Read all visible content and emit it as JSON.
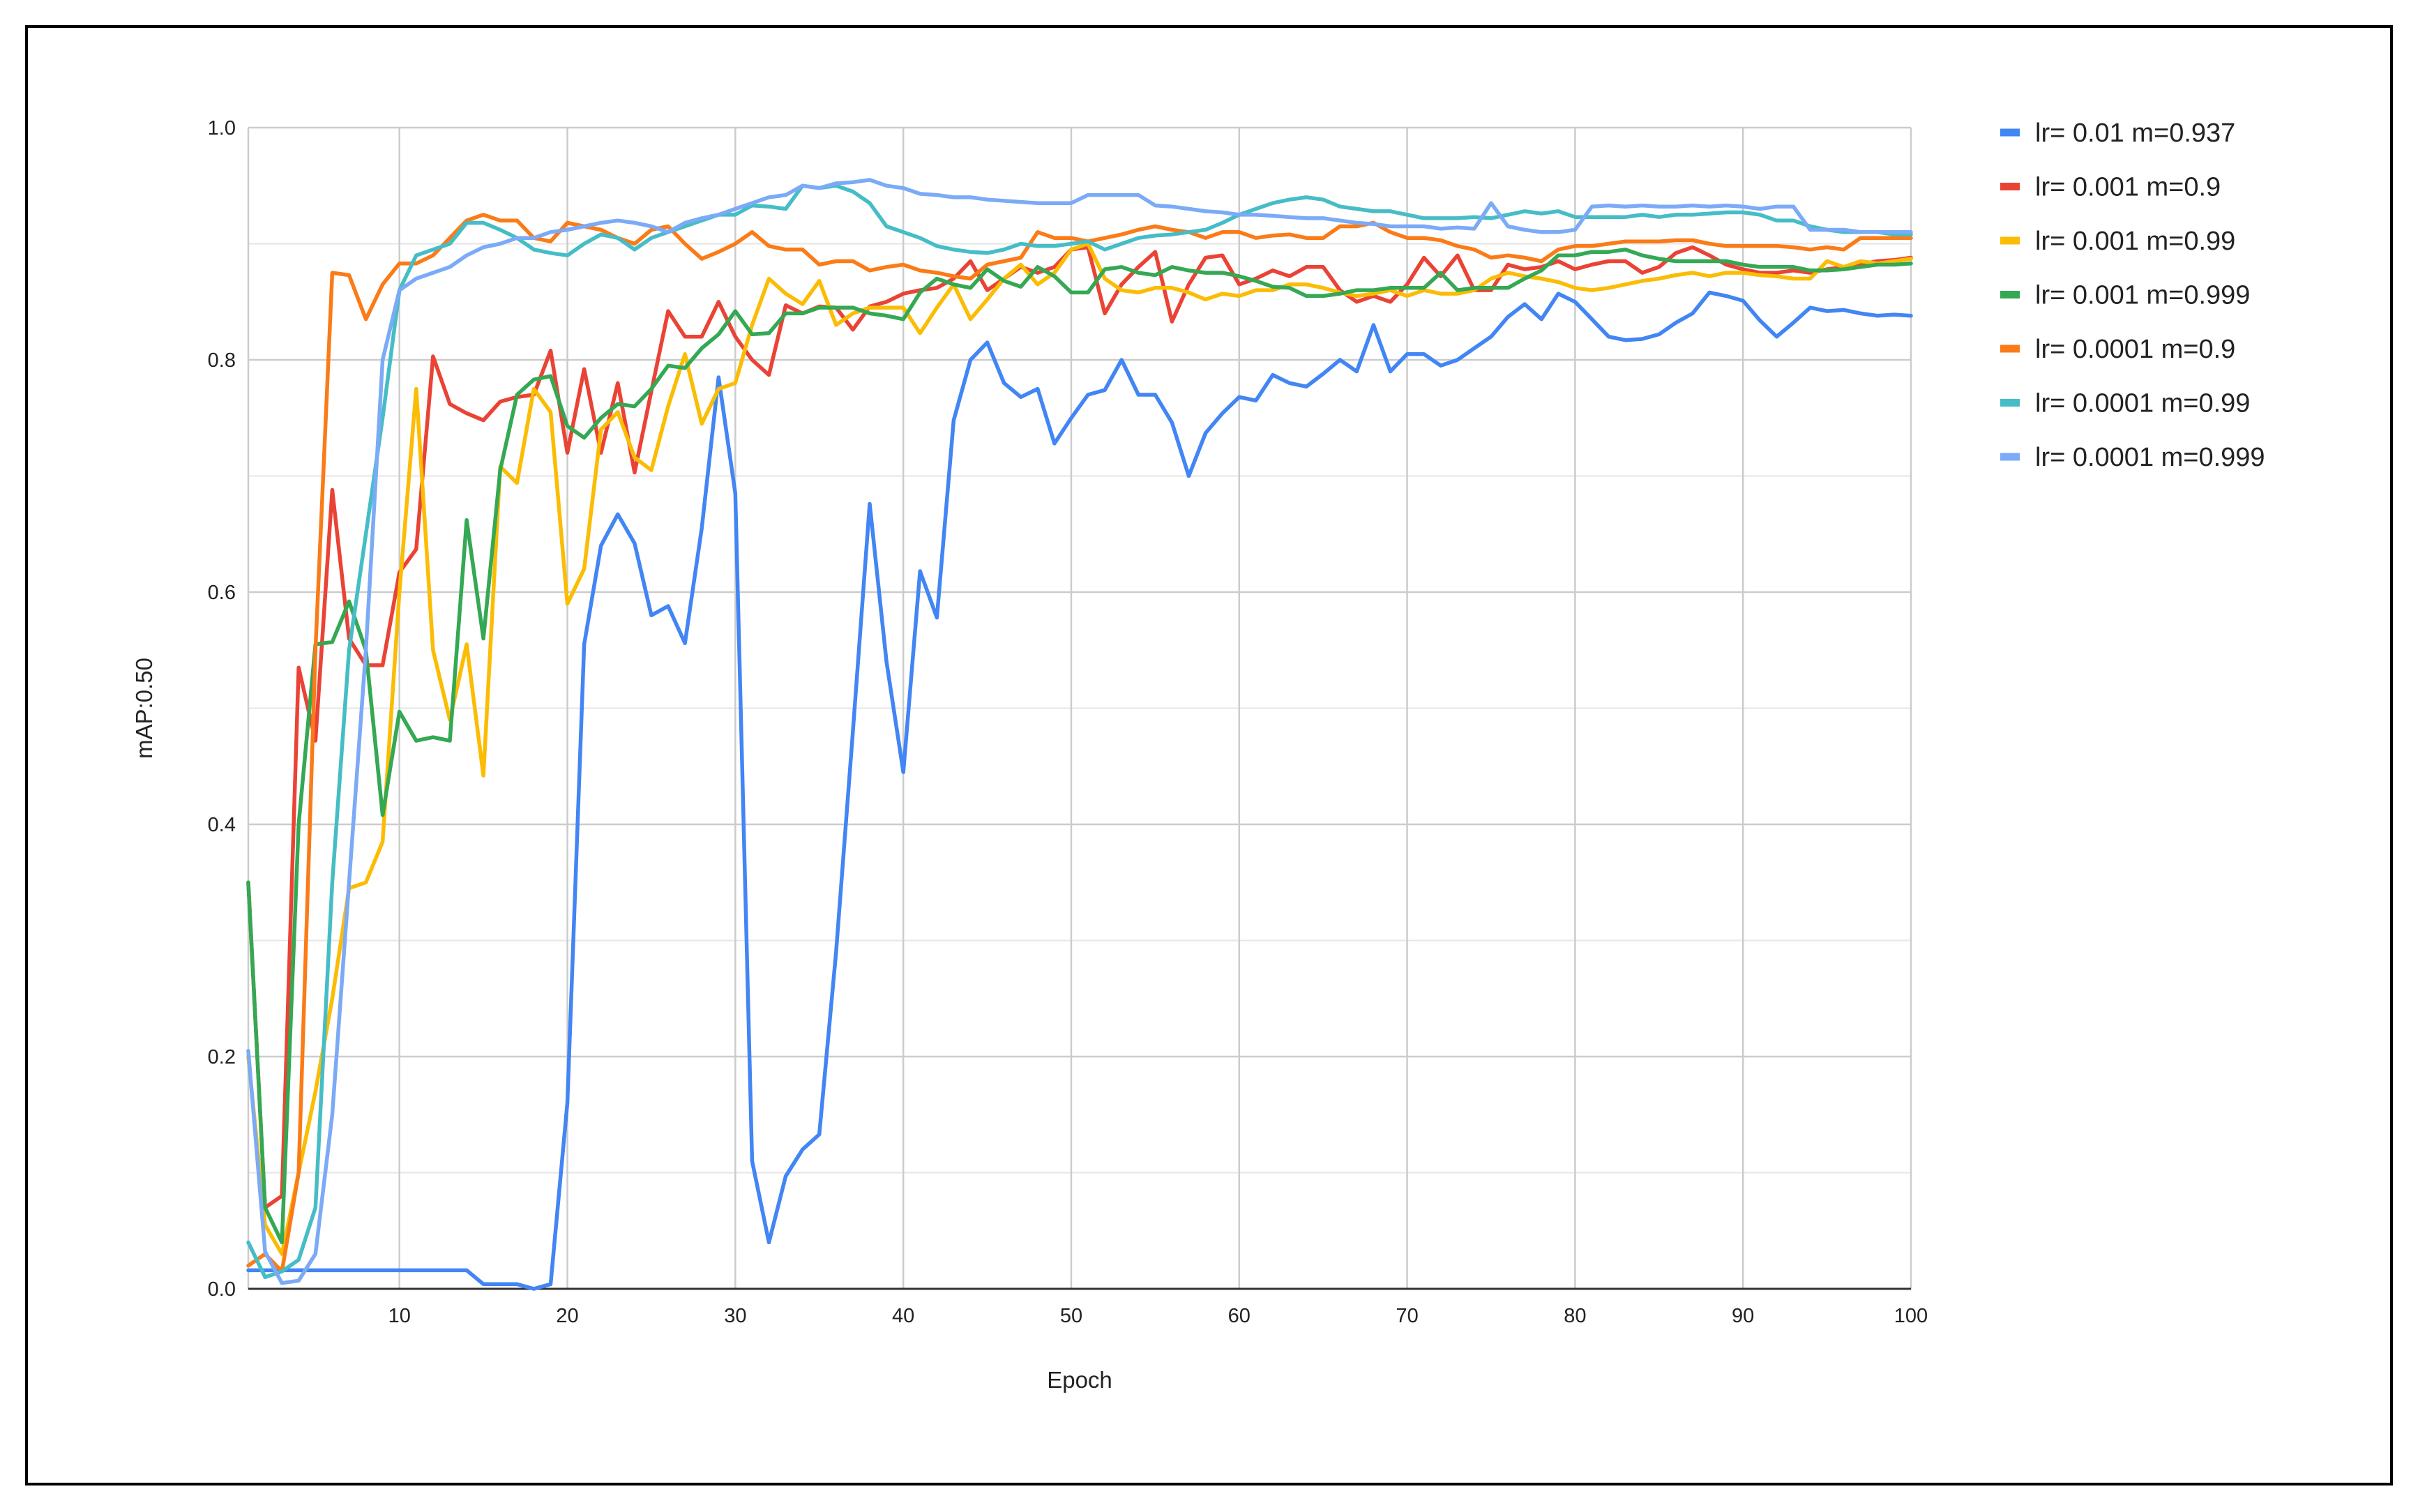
{
  "chart_data": {
    "type": "line",
    "title": "",
    "xlabel": "Epoch",
    "ylabel": "mAP:0.50",
    "xlim": [
      1,
      100
    ],
    "ylim": [
      0,
      1
    ],
    "x_ticks": [
      10,
      20,
      30,
      40,
      50,
      60,
      70,
      80,
      90,
      100
    ],
    "y_ticks": [
      "0.0",
      "0.2",
      "0.4",
      "0.6",
      "0.8",
      "1.0"
    ],
    "grid": true,
    "legend_position": "right",
    "series": [
      {
        "name": "lr= 0.01 m=0.937",
        "color": "#4285F4",
        "values": [
          0.016,
          0.016,
          0.016,
          0.016,
          0.016,
          0.016,
          0.016,
          0.016,
          0.016,
          0.016,
          0.016,
          0.016,
          0.016,
          0.016,
          0.004,
          0.004,
          0.004,
          0.0,
          0.004,
          0.16,
          0.555,
          0.64,
          0.667,
          0.642,
          0.58,
          0.588,
          0.556,
          0.655,
          0.785,
          0.685,
          0.11,
          0.04,
          0.097,
          0.12,
          0.133,
          0.29,
          0.48,
          0.676,
          0.54,
          0.445,
          0.618,
          0.578,
          0.748,
          0.8,
          0.815,
          0.78,
          0.768,
          0.775,
          0.728,
          0.75,
          0.77,
          0.774,
          0.8,
          0.77,
          0.77,
          0.746,
          0.7,
          0.737,
          0.754,
          0.768,
          0.765,
          0.787,
          0.78,
          0.777,
          0.788,
          0.8,
          0.79,
          0.83,
          0.79,
          0.805,
          0.805,
          0.795,
          0.8,
          0.81,
          0.82,
          0.837,
          0.848,
          0.835,
          0.857,
          0.85,
          0.835,
          0.82,
          0.817,
          0.818,
          0.822,
          0.832,
          0.84,
          0.858,
          0.855,
          0.851,
          0.834,
          0.82,
          0.832,
          0.845,
          0.842,
          0.843,
          0.84,
          0.838,
          0.839,
          0.838
        ]
      },
      {
        "name": "lr= 0.001 m=0.9",
        "color": "#EA4335",
        "values": [
          0.35,
          0.07,
          0.08,
          0.535,
          0.472,
          0.688,
          0.56,
          0.537,
          0.537,
          0.617,
          0.637,
          0.803,
          0.762,
          0.754,
          0.748,
          0.764,
          0.768,
          0.77,
          0.808,
          0.72,
          0.792,
          0.72,
          0.78,
          0.703,
          0.773,
          0.842,
          0.82,
          0.82,
          0.85,
          0.82,
          0.8,
          0.787,
          0.847,
          0.84,
          0.846,
          0.845,
          0.826,
          0.846,
          0.85,
          0.857,
          0.86,
          0.862,
          0.87,
          0.885,
          0.86,
          0.87,
          0.88,
          0.875,
          0.88,
          0.895,
          0.897,
          0.84,
          0.865,
          0.88,
          0.893,
          0.833,
          0.865,
          0.888,
          0.89,
          0.865,
          0.87,
          0.877,
          0.872,
          0.88,
          0.88,
          0.86,
          0.85,
          0.855,
          0.85,
          0.865,
          0.888,
          0.872,
          0.89,
          0.86,
          0.86,
          0.882,
          0.878,
          0.88,
          0.885,
          0.878,
          0.882,
          0.885,
          0.885,
          0.875,
          0.88,
          0.892,
          0.897,
          0.89,
          0.882,
          0.878,
          0.875,
          0.875,
          0.877,
          0.875,
          0.878,
          0.88,
          0.882,
          0.885,
          0.886,
          0.888
        ]
      },
      {
        "name": "lr= 0.001 m=0.99",
        "color": "#FBBC04",
        "values": [
          0.2,
          0.055,
          0.03,
          0.1,
          0.17,
          0.25,
          0.345,
          0.35,
          0.385,
          0.6,
          0.775,
          0.55,
          0.49,
          0.555,
          0.442,
          0.708,
          0.694,
          0.775,
          0.755,
          0.59,
          0.62,
          0.74,
          0.755,
          0.716,
          0.705,
          0.76,
          0.805,
          0.745,
          0.775,
          0.78,
          0.83,
          0.87,
          0.857,
          0.848,
          0.868,
          0.83,
          0.84,
          0.845,
          0.845,
          0.845,
          0.823,
          0.845,
          0.865,
          0.835,
          0.852,
          0.87,
          0.882,
          0.865,
          0.875,
          0.895,
          0.9,
          0.87,
          0.86,
          0.858,
          0.862,
          0.862,
          0.858,
          0.852,
          0.857,
          0.855,
          0.86,
          0.86,
          0.865,
          0.865,
          0.862,
          0.858,
          0.855,
          0.857,
          0.86,
          0.855,
          0.86,
          0.857,
          0.857,
          0.86,
          0.87,
          0.875,
          0.872,
          0.87,
          0.867,
          0.862,
          0.86,
          0.862,
          0.865,
          0.868,
          0.87,
          0.873,
          0.875,
          0.872,
          0.875,
          0.875,
          0.873,
          0.872,
          0.87,
          0.87,
          0.885,
          0.88,
          0.885,
          0.883,
          0.885,
          0.887
        ]
      },
      {
        "name": "lr= 0.001 m=0.999",
        "color": "#34A853",
        "values": [
          0.35,
          0.07,
          0.04,
          0.4,
          0.555,
          0.557,
          0.592,
          0.55,
          0.408,
          0.497,
          0.472,
          0.475,
          0.472,
          0.662,
          0.56,
          0.705,
          0.77,
          0.783,
          0.786,
          0.743,
          0.733,
          0.75,
          0.762,
          0.76,
          0.775,
          0.795,
          0.793,
          0.81,
          0.822,
          0.842,
          0.822,
          0.823,
          0.84,
          0.84,
          0.845,
          0.845,
          0.845,
          0.84,
          0.838,
          0.835,
          0.858,
          0.87,
          0.865,
          0.862,
          0.878,
          0.868,
          0.863,
          0.88,
          0.872,
          0.858,
          0.858,
          0.878,
          0.88,
          0.875,
          0.873,
          0.88,
          0.877,
          0.875,
          0.875,
          0.872,
          0.868,
          0.863,
          0.862,
          0.855,
          0.855,
          0.857,
          0.86,
          0.86,
          0.862,
          0.862,
          0.862,
          0.875,
          0.86,
          0.862,
          0.862,
          0.862,
          0.87,
          0.877,
          0.89,
          0.89,
          0.893,
          0.893,
          0.895,
          0.89,
          0.887,
          0.885,
          0.885,
          0.885,
          0.885,
          0.882,
          0.88,
          0.88,
          0.88,
          0.877,
          0.877,
          0.878,
          0.88,
          0.882,
          0.882,
          0.883
        ]
      },
      {
        "name": "lr= 0.0001 m=0.9",
        "color": "#FA7B17",
        "values": [
          0.02,
          0.03,
          0.015,
          0.1,
          0.55,
          0.875,
          0.873,
          0.835,
          0.865,
          0.883,
          0.883,
          0.89,
          0.905,
          0.92,
          0.925,
          0.92,
          0.92,
          0.905,
          0.902,
          0.918,
          0.915,
          0.912,
          0.905,
          0.9,
          0.912,
          0.915,
          0.9,
          0.887,
          0.893,
          0.9,
          0.91,
          0.898,
          0.895,
          0.895,
          0.882,
          0.885,
          0.885,
          0.877,
          0.88,
          0.882,
          0.877,
          0.875,
          0.872,
          0.87,
          0.882,
          0.885,
          0.888,
          0.91,
          0.905,
          0.905,
          0.902,
          0.905,
          0.908,
          0.912,
          0.915,
          0.912,
          0.91,
          0.905,
          0.91,
          0.91,
          0.905,
          0.907,
          0.908,
          0.905,
          0.905,
          0.915,
          0.915,
          0.918,
          0.91,
          0.905,
          0.905,
          0.903,
          0.898,
          0.895,
          0.888,
          0.89,
          0.888,
          0.885,
          0.895,
          0.898,
          0.898,
          0.9,
          0.902,
          0.902,
          0.902,
          0.903,
          0.903,
          0.9,
          0.898,
          0.898,
          0.898,
          0.898,
          0.897,
          0.895,
          0.897,
          0.895,
          0.905,
          0.905,
          0.905,
          0.905
        ]
      },
      {
        "name": "lr= 0.0001 m=0.99",
        "color": "#46BDC6",
        "values": [
          0.04,
          0.01,
          0.015,
          0.025,
          0.07,
          0.35,
          0.55,
          0.65,
          0.75,
          0.86,
          0.89,
          0.895,
          0.9,
          0.918,
          0.918,
          0.912,
          0.905,
          0.895,
          0.892,
          0.89,
          0.9,
          0.908,
          0.905,
          0.895,
          0.905,
          0.91,
          0.915,
          0.92,
          0.925,
          0.925,
          0.933,
          0.932,
          0.93,
          0.95,
          0.948,
          0.95,
          0.945,
          0.935,
          0.915,
          0.91,
          0.905,
          0.898,
          0.895,
          0.893,
          0.892,
          0.895,
          0.9,
          0.898,
          0.898,
          0.9,
          0.902,
          0.895,
          0.9,
          0.905,
          0.907,
          0.908,
          0.91,
          0.912,
          0.918,
          0.925,
          0.93,
          0.935,
          0.938,
          0.94,
          0.938,
          0.932,
          0.93,
          0.928,
          0.928,
          0.925,
          0.922,
          0.922,
          0.922,
          0.923,
          0.922,
          0.925,
          0.928,
          0.926,
          0.928,
          0.923,
          0.923,
          0.923,
          0.923,
          0.925,
          0.923,
          0.925,
          0.925,
          0.926,
          0.927,
          0.927,
          0.925,
          0.92,
          0.92,
          0.915,
          0.912,
          0.91,
          0.91,
          0.91,
          0.908,
          0.908
        ]
      },
      {
        "name": "lr= 0.0001 m=0.999",
        "color": "#7BAAF7",
        "values": [
          0.205,
          0.032,
          0.005,
          0.007,
          0.03,
          0.15,
          0.35,
          0.55,
          0.8,
          0.86,
          0.87,
          0.875,
          0.88,
          0.89,
          0.897,
          0.9,
          0.905,
          0.905,
          0.91,
          0.912,
          0.915,
          0.918,
          0.92,
          0.918,
          0.915,
          0.91,
          0.918,
          0.922,
          0.925,
          0.93,
          0.935,
          0.94,
          0.942,
          0.95,
          0.948,
          0.952,
          0.953,
          0.955,
          0.95,
          0.948,
          0.943,
          0.942,
          0.94,
          0.94,
          0.938,
          0.937,
          0.936,
          0.935,
          0.935,
          0.935,
          0.942,
          0.942,
          0.942,
          0.942,
          0.933,
          0.932,
          0.93,
          0.928,
          0.927,
          0.925,
          0.925,
          0.924,
          0.923,
          0.922,
          0.922,
          0.92,
          0.918,
          0.917,
          0.915,
          0.915,
          0.915,
          0.913,
          0.914,
          0.913,
          0.935,
          0.915,
          0.912,
          0.91,
          0.91,
          0.912,
          0.932,
          0.933,
          0.932,
          0.933,
          0.932,
          0.932,
          0.933,
          0.932,
          0.933,
          0.932,
          0.93,
          0.932,
          0.932,
          0.912,
          0.912,
          0.912,
          0.91,
          0.91,
          0.91,
          0.91
        ]
      }
    ]
  }
}
